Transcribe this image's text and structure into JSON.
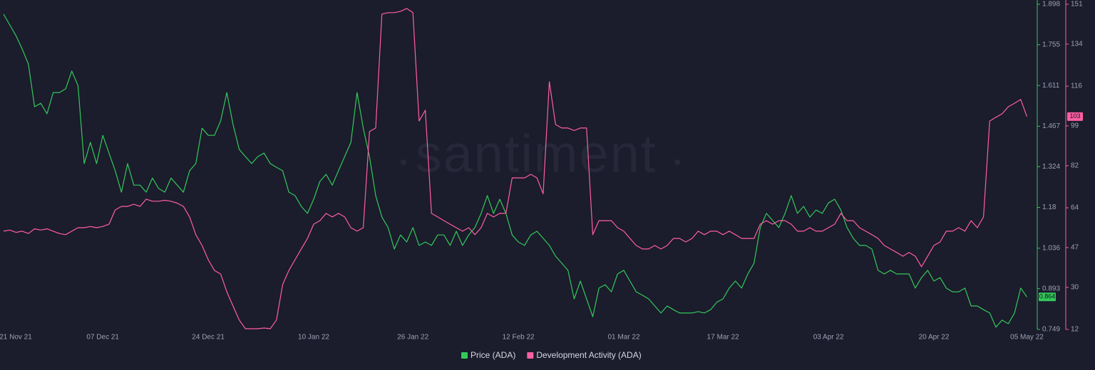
{
  "chart_data": {
    "type": "line",
    "watermark": "santiment",
    "categories": [
      "21 Nov 21",
      null,
      null,
      null,
      null,
      null,
      null,
      null,
      null,
      null,
      null,
      null,
      null,
      null,
      null,
      null,
      "07 Dec 21",
      null,
      null,
      null,
      null,
      null,
      null,
      null,
      null,
      null,
      null,
      null,
      null,
      null,
      null,
      null,
      null,
      "24 Dec 21",
      null,
      null,
      null,
      null,
      null,
      null,
      null,
      null,
      null,
      null,
      null,
      null,
      null,
      null,
      null,
      null,
      "10 Jan 22",
      null,
      null,
      null,
      null,
      null,
      null,
      null,
      null,
      null,
      null,
      null,
      null,
      null,
      null,
      null,
      "26 Jan 22",
      null,
      null,
      null,
      null,
      null,
      null,
      null,
      null,
      null,
      null,
      null,
      null,
      null,
      null,
      null,
      null,
      "12 Feb 22",
      null,
      null,
      null,
      null,
      null,
      null,
      null,
      null,
      null,
      null,
      null,
      null,
      null,
      null,
      null,
      null,
      "01 Mar 22",
      null,
      null,
      null,
      null,
      null,
      null,
      null,
      null,
      null,
      null,
      null,
      null,
      null,
      null,
      null,
      "17 Mar 22",
      null,
      null,
      null,
      null,
      null,
      null,
      null,
      null,
      null,
      null,
      null,
      null,
      null,
      null,
      null,
      null,
      "03 Apr 22",
      null,
      null,
      null,
      null,
      null,
      null,
      null,
      null,
      null,
      null,
      null,
      null,
      null,
      null,
      null,
      null,
      "20 Apr 22",
      null,
      null,
      null,
      null,
      null,
      null,
      null,
      null,
      null,
      null,
      null,
      null,
      null,
      null,
      "05 May 22"
    ],
    "series": [
      {
        "name": "Price (ADA)",
        "color": "#33c95a",
        "axis": "y",
        "values": [
          1.863,
          1.825,
          1.787,
          1.74,
          1.687,
          1.536,
          1.548,
          1.511,
          1.586,
          1.586,
          1.599,
          1.662,
          1.611,
          1.335,
          1.41,
          1.335,
          1.435,
          1.372,
          1.31,
          1.234,
          1.335,
          1.259,
          1.259,
          1.234,
          1.284,
          1.247,
          1.234,
          1.284,
          1.259,
          1.234,
          1.31,
          1.335,
          1.46,
          1.435,
          1.435,
          1.486,
          1.586,
          1.473,
          1.385,
          1.36,
          1.335,
          1.36,
          1.372,
          1.335,
          1.322,
          1.31,
          1.234,
          1.222,
          1.184,
          1.159,
          1.209,
          1.272,
          1.297,
          1.259,
          1.31,
          1.36,
          1.41,
          1.586,
          1.46,
          1.36,
          1.222,
          1.146,
          1.109,
          1.033,
          1.083,
          1.058,
          1.109,
          1.046,
          1.058,
          1.046,
          1.083,
          1.083,
          1.046,
          1.096,
          1.046,
          1.083,
          1.109,
          1.159,
          1.222,
          1.159,
          1.209,
          1.159,
          1.083,
          1.058,
          1.046,
          1.083,
          1.096,
          1.071,
          1.046,
          1.008,
          0.983,
          0.958,
          0.857,
          0.92,
          0.857,
          0.794,
          0.895,
          0.907,
          0.882,
          0.945,
          0.958,
          0.92,
          0.882,
          0.87,
          0.857,
          0.832,
          0.807,
          0.832,
          0.819,
          0.807,
          0.807,
          0.807,
          0.812,
          0.807,
          0.819,
          0.845,
          0.857,
          0.895,
          0.92,
          0.895,
          0.945,
          0.983,
          1.109,
          1.159,
          1.134,
          1.109,
          1.159,
          1.222,
          1.159,
          1.184,
          1.146,
          1.171,
          1.159,
          1.196,
          1.209,
          1.171,
          1.109,
          1.071,
          1.046,
          1.046,
          1.033,
          0.958,
          0.945,
          0.958,
          0.945,
          0.945,
          0.945,
          0.895,
          0.932,
          0.958,
          0.92,
          0.932,
          0.895,
          0.882,
          0.882,
          0.895,
          0.832,
          0.832,
          0.819,
          0.807,
          0.757,
          0.782,
          0.769,
          0.807,
          0.895,
          0.864
        ]
      },
      {
        "name": "Development Activity (ADA)",
        "color": "#ff5fa2",
        "axis": "y2",
        "values": [
          54,
          54.5,
          53.5,
          54,
          53,
          55,
          54.5,
          55,
          54,
          53,
          52.5,
          54,
          55.5,
          55.5,
          56,
          55.5,
          56,
          57,
          63.1,
          64.6,
          64.6,
          65.5,
          64.6,
          67.7,
          66.8,
          66.8,
          67.2,
          66.8,
          66,
          64.6,
          60.1,
          52.5,
          47.9,
          41.8,
          37.2,
          35.7,
          28.1,
          22,
          16,
          12.3,
          12.3,
          12.3,
          12.6,
          12.3,
          16,
          31.2,
          37.2,
          41.8,
          46.4,
          50.9,
          57,
          58.5,
          61.6,
          60.1,
          61.6,
          60.1,
          55.5,
          54,
          55.5,
          96.6,
          98.1,
          146.8,
          147.4,
          147.4,
          148,
          149.2,
          147.4,
          101.1,
          105.7,
          61.6,
          60.1,
          58.5,
          57,
          55.5,
          54,
          55.5,
          52.5,
          55.5,
          61.6,
          60.1,
          61.6,
          61.6,
          76.8,
          76.8,
          76.8,
          78.3,
          76.8,
          70,
          117.9,
          99.6,
          98.1,
          98.1,
          97,
          98.1,
          98.1,
          52.5,
          58.5,
          58.5,
          58.5,
          55.5,
          54,
          50.9,
          47.9,
          46.4,
          46.4,
          47.9,
          46.4,
          47.9,
          50.9,
          50.9,
          49.4,
          50.9,
          54,
          52.5,
          54,
          54,
          52.5,
          54,
          52.5,
          50.9,
          50.9,
          50.9,
          57,
          58.5,
          57,
          58.5,
          58.5,
          57,
          54,
          54,
          55.5,
          54,
          54,
          55.5,
          57,
          61.6,
          58.5,
          58.5,
          55.5,
          54,
          52.5,
          50.9,
          47.9,
          46.4,
          44.9,
          43.3,
          44.9,
          43.3,
          38.8,
          43.3,
          47.9,
          49.4,
          54,
          54,
          55.5,
          54,
          58.5,
          55.5,
          60.1,
          101.1,
          102.7,
          104.2,
          107.2,
          108.7,
          110.3,
          103
        ]
      }
    ],
    "ylim": [
      0.749,
      1.898
    ],
    "yticks": [
      1.898,
      1.755,
      1.611,
      1.467,
      1.324,
      1.18,
      1.036,
      0.893,
      0.749
    ],
    "y2lim": [
      12,
      151
    ],
    "y2ticks": [
      151,
      134,
      116,
      99,
      82,
      64,
      47,
      30,
      12
    ],
    "grid": false
  }
}
